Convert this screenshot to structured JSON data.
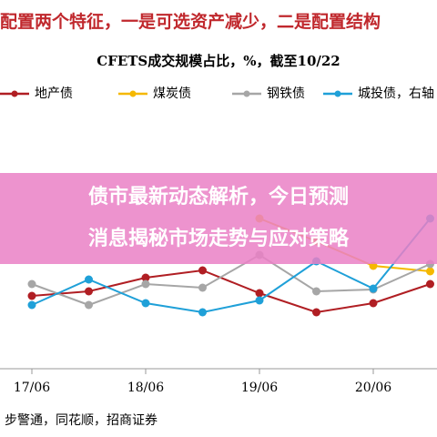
{
  "banner": "配置两个特征，一是可选资产减少，二是配置结构",
  "overlay": [
    "债市最新动态解析，今日预测",
    "消息揭秘市场走势与应对策略"
  ],
  "source": "步警通，同花顺，招商证券",
  "chart_data": {
    "type": "line",
    "title": "CFETS成交规模占比，%，截至10/22",
    "categories": [
      "17/06",
      null,
      "18/06",
      null,
      "19/06",
      null,
      "20/06",
      null
    ],
    "ylim": [
      0,
      30
    ],
    "series": [
      {
        "name": "地产债",
        "color": "#b01e23",
        "values": [
          7.5,
          8.0,
          9.5,
          10.3,
          7.8,
          5.7,
          6.7,
          8.8
        ]
      },
      {
        "name": "煤炭债",
        "color": "#f5b800",
        "values": [
          null,
          null,
          null,
          null,
          16,
          13.5,
          10.8,
          10.2
        ]
      },
      {
        "name": "钢铁债",
        "color": "#a6a6a6",
        "values": [
          8.8,
          6.5,
          8.8,
          8.4,
          12,
          8,
          8.2,
          11
        ]
      },
      {
        "name": "城投债，右轴",
        "color": "#1fa0d8",
        "values": [
          6.5,
          9.3,
          6.7,
          5.7,
          7,
          11.3,
          8.3,
          16
        ]
      }
    ]
  }
}
